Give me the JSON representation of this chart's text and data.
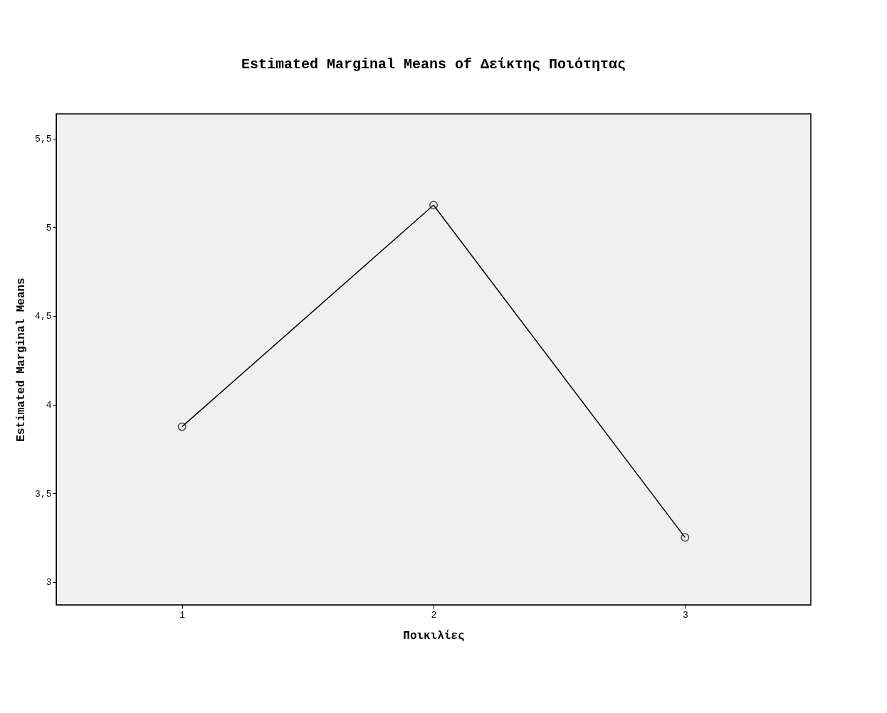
{
  "chart_data": {
    "type": "line",
    "title": "Estimated Marginal Means of Δείκτης Ποιότητας",
    "xlabel": "Ποικιλίες",
    "ylabel": "Estimated Marginal Means",
    "categories": [
      "1",
      "2",
      "3"
    ],
    "series": [
      {
        "color": "#000000",
        "values": [
          3.875,
          5.125,
          3.25
        ]
      }
    ],
    "ylim": [
      2.87,
      5.64
    ],
    "yticks": [
      3,
      {
        "value": 3.5,
        "label": "3,5"
      },
      4,
      {
        "value": 4.5,
        "label": "4,5"
      },
      5,
      {
        "value": 5.5,
        "label": "5,5"
      }
    ],
    "marker": "circle",
    "line_style": "solid",
    "grid": false
  }
}
